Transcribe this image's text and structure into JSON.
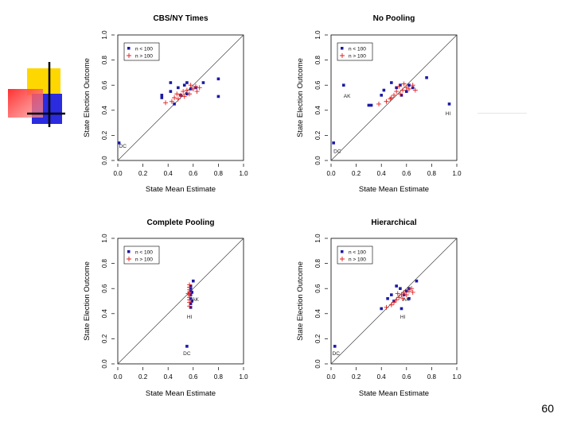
{
  "slide": {
    "number": "60"
  },
  "logo": {
    "colors": [
      "#FFD700",
      "#2B2BE0",
      "#FF4040",
      "#000000"
    ]
  },
  "chart_data": [
    {
      "type": "scatter",
      "title": "CBS/NY Times",
      "xlabel": "State Mean Estimate",
      "ylabel": "State Election Outcome",
      "xlim": [
        0,
        1
      ],
      "ylim": [
        0,
        1
      ],
      "ticks": [
        "0.0",
        "0.2",
        "0.4",
        "0.6",
        "0.8",
        "1.0"
      ],
      "legend": {
        "entries": [
          "n < 100",
          "n > 100"
        ],
        "placement": "top-left"
      },
      "reference_line": "y = x",
      "series": [
        {
          "name": "n < 100",
          "marker": "square",
          "color": "#1a1aa6",
          "points": [
            [
              0.01,
              0.14
            ],
            [
              0.35,
              0.52
            ],
            [
              0.35,
              0.5
            ],
            [
              0.42,
              0.62
            ],
            [
              0.42,
              0.55
            ],
            [
              0.48,
              0.58
            ],
            [
              0.53,
              0.6
            ],
            [
              0.55,
              0.62
            ],
            [
              0.5,
              0.52
            ],
            [
              0.58,
              0.57
            ],
            [
              0.62,
              0.58
            ],
            [
              0.8,
              0.65
            ],
            [
              0.8,
              0.51
            ],
            [
              0.68,
              0.62
            ],
            [
              0.45,
              0.45
            ],
            [
              0.55,
              0.53
            ]
          ]
        },
        {
          "name": "n > 100",
          "marker": "plus",
          "color": "#e02020",
          "points": [
            [
              0.38,
              0.46
            ],
            [
              0.43,
              0.47
            ],
            [
              0.45,
              0.5
            ],
            [
              0.48,
              0.49
            ],
            [
              0.5,
              0.52
            ],
            [
              0.52,
              0.55
            ],
            [
              0.55,
              0.56
            ],
            [
              0.57,
              0.53
            ],
            [
              0.6,
              0.57
            ],
            [
              0.62,
              0.59
            ],
            [
              0.63,
              0.55
            ],
            [
              0.58,
              0.6
            ],
            [
              0.53,
              0.51
            ],
            [
              0.47,
              0.53
            ],
            [
              0.65,
              0.58
            ]
          ]
        }
      ],
      "annotations": [
        {
          "label": "DC",
          "x": 0.01,
          "y": 0.1
        }
      ]
    },
    {
      "type": "scatter",
      "title": "No Pooling",
      "xlabel": "State Mean Estimate",
      "ylabel": "State Election Outcome",
      "xlim": [
        0,
        1
      ],
      "ylim": [
        0,
        1
      ],
      "ticks": [
        "0.0",
        "0.2",
        "0.4",
        "0.6",
        "0.8",
        "1.0"
      ],
      "legend": {
        "entries": [
          "n < 100",
          "n > 100"
        ],
        "placement": "top-left"
      },
      "reference_line": "y = x",
      "series": [
        {
          "name": "n < 100",
          "marker": "square",
          "color": "#1a1aa6",
          "points": [
            [
              0.02,
              0.14
            ],
            [
              0.1,
              0.6
            ],
            [
              0.3,
              0.44
            ],
            [
              0.32,
              0.44
            ],
            [
              0.4,
              0.52
            ],
            [
              0.42,
              0.56
            ],
            [
              0.48,
              0.62
            ],
            [
              0.52,
              0.58
            ],
            [
              0.56,
              0.52
            ],
            [
              0.6,
              0.55
            ],
            [
              0.62,
              0.6
            ],
            [
              0.76,
              0.66
            ],
            [
              0.94,
              0.45
            ],
            [
              0.65,
              0.58
            ],
            [
              0.55,
              0.6
            ]
          ]
        },
        {
          "name": "n > 100",
          "marker": "plus",
          "color": "#e02020",
          "points": [
            [
              0.38,
              0.45
            ],
            [
              0.44,
              0.47
            ],
            [
              0.47,
              0.49
            ],
            [
              0.5,
              0.52
            ],
            [
              0.52,
              0.55
            ],
            [
              0.55,
              0.53
            ],
            [
              0.57,
              0.56
            ],
            [
              0.6,
              0.58
            ],
            [
              0.62,
              0.57
            ],
            [
              0.65,
              0.6
            ],
            [
              0.67,
              0.56
            ],
            [
              0.58,
              0.61
            ],
            [
              0.48,
              0.5
            ],
            [
              0.54,
              0.59
            ]
          ]
        }
      ],
      "annotations": [
        {
          "label": "AK",
          "x": 0.1,
          "y": 0.5
        },
        {
          "label": "HI",
          "x": 0.91,
          "y": 0.36
        },
        {
          "label": "DC",
          "x": 0.02,
          "y": 0.06
        }
      ]
    },
    {
      "type": "scatter",
      "title": "Complete Pooling",
      "xlabel": "State Mean Estimate",
      "ylabel": "State Election Outcome",
      "xlim": [
        0,
        1
      ],
      "ylim": [
        0,
        1
      ],
      "ticks": [
        "0.0",
        "0.2",
        "0.4",
        "0.6",
        "0.8",
        "1.0"
      ],
      "legend": {
        "entries": [
          "n < 100",
          "n > 100"
        ],
        "placement": "top-left"
      },
      "reference_line": "y = x",
      "series": [
        {
          "name": "n < 100",
          "marker": "square",
          "color": "#1a1aa6",
          "points": [
            [
              0.55,
              0.14
            ],
            [
              0.58,
              0.45
            ],
            [
              0.58,
              0.48
            ],
            [
              0.58,
              0.52
            ],
            [
              0.58,
              0.55
            ],
            [
              0.58,
              0.58
            ],
            [
              0.58,
              0.6
            ],
            [
              0.58,
              0.62
            ],
            [
              0.6,
              0.66
            ],
            [
              0.59,
              0.5
            ],
            [
              0.59,
              0.57
            ]
          ]
        },
        {
          "name": "n > 100",
          "marker": "plus",
          "color": "#e02020",
          "points": [
            [
              0.57,
              0.46
            ],
            [
              0.57,
              0.49
            ],
            [
              0.57,
              0.51
            ],
            [
              0.57,
              0.53
            ],
            [
              0.57,
              0.55
            ],
            [
              0.57,
              0.57
            ],
            [
              0.57,
              0.59
            ],
            [
              0.57,
              0.61
            ],
            [
              0.57,
              0.63
            ],
            [
              0.56,
              0.56
            ]
          ]
        }
      ],
      "annotations": [
        {
          "label": "AK",
          "x": 0.59,
          "y": 0.5
        },
        {
          "label": "HI",
          "x": 0.55,
          "y": 0.36
        },
        {
          "label": "DC",
          "x": 0.52,
          "y": 0.07
        }
      ]
    },
    {
      "type": "scatter",
      "title": "Hierarchical",
      "xlabel": "State Mean Estimate",
      "ylabel": "State Election Outcome",
      "xlim": [
        0,
        1
      ],
      "ylim": [
        0,
        1
      ],
      "ticks": [
        "0.0",
        "0.2",
        "0.4",
        "0.6",
        "0.8",
        "1.0"
      ],
      "legend": {
        "entries": [
          "n < 100",
          "n > 100"
        ],
        "placement": "top-left"
      },
      "reference_line": "y = x",
      "series": [
        {
          "name": "n < 100",
          "marker": "square",
          "color": "#1a1aa6",
          "points": [
            [
              0.03,
              0.14
            ],
            [
              0.4,
              0.44
            ],
            [
              0.45,
              0.52
            ],
            [
              0.5,
              0.5
            ],
            [
              0.52,
              0.62
            ],
            [
              0.55,
              0.6
            ],
            [
              0.58,
              0.55
            ],
            [
              0.6,
              0.58
            ],
            [
              0.62,
              0.52
            ],
            [
              0.68,
              0.66
            ],
            [
              0.56,
              0.44
            ],
            [
              0.48,
              0.55
            ],
            [
              0.62,
              0.6
            ]
          ]
        },
        {
          "name": "n > 100",
          "marker": "plus",
          "color": "#e02020",
          "points": [
            [
              0.44,
              0.45
            ],
            [
              0.48,
              0.47
            ],
            [
              0.5,
              0.49
            ],
            [
              0.52,
              0.51
            ],
            [
              0.54,
              0.53
            ],
            [
              0.56,
              0.55
            ],
            [
              0.58,
              0.57
            ],
            [
              0.6,
              0.55
            ],
            [
              0.62,
              0.58
            ],
            [
              0.64,
              0.6
            ],
            [
              0.53,
              0.56
            ],
            [
              0.57,
              0.52
            ],
            [
              0.65,
              0.57
            ]
          ]
        }
      ],
      "annotations": [
        {
          "label": "AK",
          "x": 0.57,
          "y": 0.5
        },
        {
          "label": "HI",
          "x": 0.55,
          "y": 0.36
        },
        {
          "label": "DC",
          "x": 0.01,
          "y": 0.07
        }
      ]
    }
  ]
}
